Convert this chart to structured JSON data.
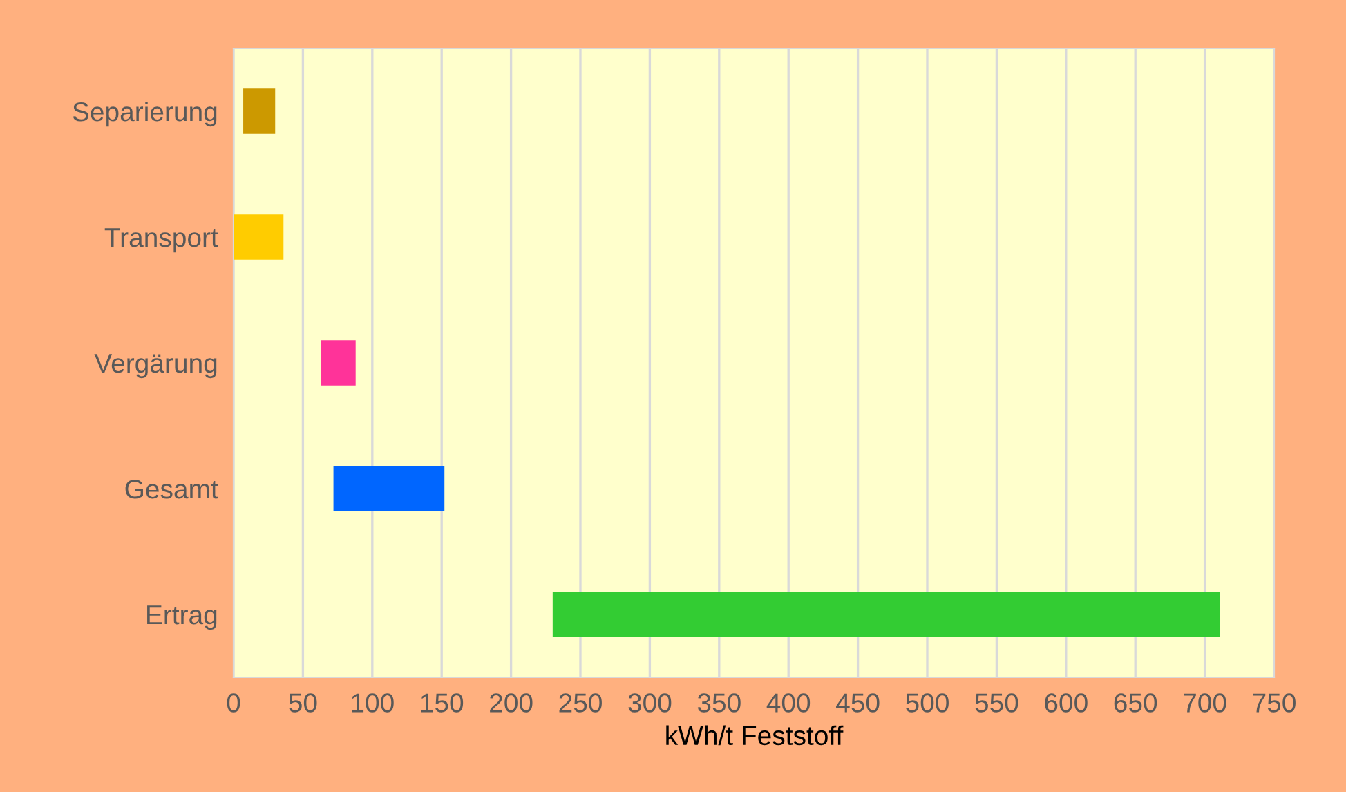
{
  "chart_data": {
    "type": "bar",
    "orientation": "horizontal",
    "xlabel": "kWh/t Feststoff",
    "categories": [
      "Separierung",
      "Transport",
      "Vergärung",
      "Gesamt",
      "Ertrag"
    ],
    "base": [
      7,
      0,
      63,
      72,
      230
    ],
    "values": [
      23,
      36,
      25,
      80,
      481
    ],
    "colors": [
      "#cc9900",
      "#ffcc00",
      "#ff3399",
      "#0066ff",
      "#33cc33"
    ],
    "xlim": [
      0,
      750
    ],
    "xticks": [
      0,
      50,
      100,
      150,
      200,
      250,
      300,
      350,
      400,
      450,
      500,
      550,
      600,
      650,
      700,
      750
    ],
    "grid": "x"
  }
}
